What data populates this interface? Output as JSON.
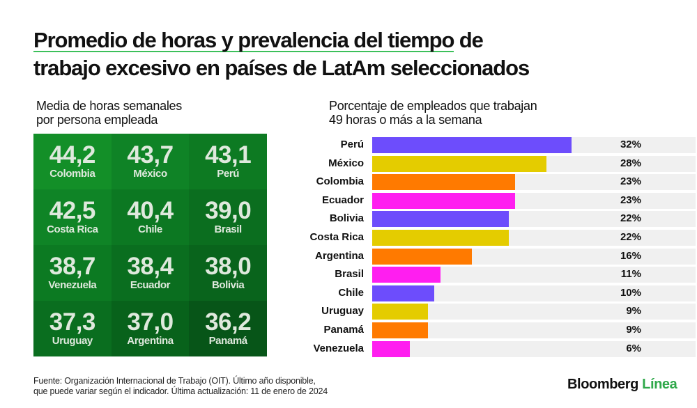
{
  "title": {
    "highlighted": "Promedio de horas y prevalencia del tiempo",
    "rest1": " de",
    "line2": "trabajo excesivo en países de LatAm seleccionados"
  },
  "left": {
    "subtitle_line1": "Media de horas semanales",
    "subtitle_line2": "por persona empleada",
    "cells": [
      {
        "value": "44,2",
        "country": "Colombia"
      },
      {
        "value": "43,7",
        "country": "México"
      },
      {
        "value": "43,1",
        "country": "Perú"
      },
      {
        "value": "42,5",
        "country": "Costa Rica"
      },
      {
        "value": "40,4",
        "country": "Chile"
      },
      {
        "value": "39,0",
        "country": "Brasil"
      },
      {
        "value": "38,7",
        "country": "Venezuela"
      },
      {
        "value": "38,4",
        "country": "Ecuador"
      },
      {
        "value": "38,0",
        "country": "Bolivia"
      },
      {
        "value": "37,3",
        "country": "Uruguay"
      },
      {
        "value": "37,0",
        "country": "Argentina"
      },
      {
        "value": "36,2",
        "country": "Panamá"
      }
    ]
  },
  "chart_data": {
    "type": "bar",
    "orientation": "horizontal",
    "subtitle_line1": "Porcentaje de empleados que trabajan",
    "subtitle_line2": "49 horas o más a la semana",
    "categories": [
      "Perú",
      "México",
      "Colombia",
      "Ecuador",
      "Bolivia",
      "Costa Rica",
      "Argentina",
      "Brasil",
      "Chile",
      "Uruguay",
      "Panamá",
      "Venezuela"
    ],
    "values": [
      32,
      28,
      23,
      23,
      22,
      22,
      16,
      11,
      10,
      9,
      9,
      6
    ],
    "labels": [
      "32%",
      "28%",
      "23%",
      "23%",
      "22%",
      "22%",
      "16%",
      "11%",
      "10%",
      "9%",
      "9%",
      "6%"
    ],
    "colors": [
      "#6d4dfc",
      "#e4cc00",
      "#ff7a00",
      "#ff1ef0",
      "#6d4dfc",
      "#e4cc00",
      "#ff7a00",
      "#ff1ef0",
      "#6d4dfc",
      "#e4cc00",
      "#ff7a00",
      "#ff1ef0"
    ],
    "xlim": [
      0,
      52
    ]
  },
  "footer": {
    "source_line1": "Fuente: Organización Internacional de Trabajo (OIT). Último año disponible,",
    "source_line2": "que puede variar según el indicador. Última actualización: 11 de enero de 2024"
  },
  "logo": {
    "part1": "Bloomberg",
    "part2": "Línea"
  }
}
